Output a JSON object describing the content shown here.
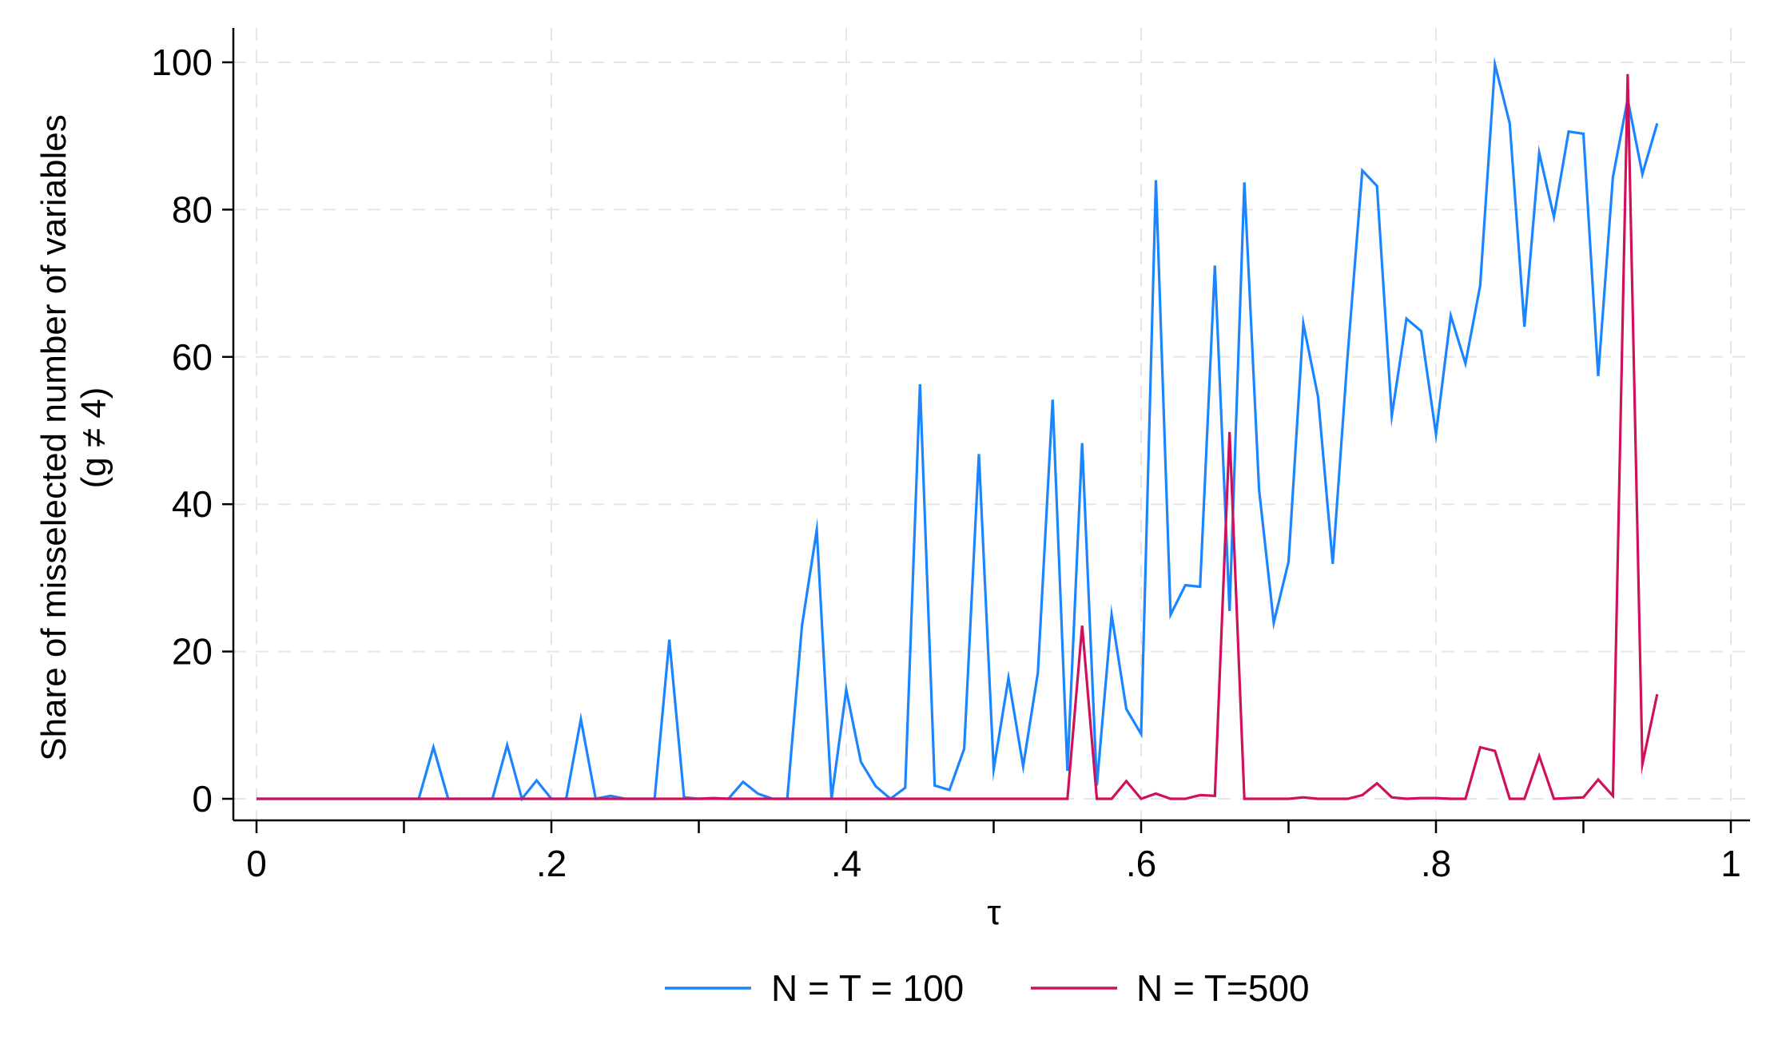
{
  "chart_data": {
    "type": "line",
    "xlabel": "τ",
    "ylabel_lines": [
      "Share of misselected number of variables",
      "(g ≠ 4)"
    ],
    "xlim": [
      0,
      1
    ],
    "ylim": [
      0,
      100
    ],
    "x_ticks": [
      {
        "value": 0,
        "label": "0"
      },
      {
        "value": 0.2,
        "label": ".2"
      },
      {
        "value": 0.4,
        "label": ".4"
      },
      {
        "value": 0.6,
        "label": ".6"
      },
      {
        "value": 0.8,
        "label": ".8"
      },
      {
        "value": 1,
        "label": "1"
      }
    ],
    "x_minor_ticks": [
      0.1,
      0.3,
      0.5,
      0.7,
      0.9
    ],
    "y_ticks": [
      {
        "value": 0,
        "label": "0"
      },
      {
        "value": 20,
        "label": "20"
      },
      {
        "value": 40,
        "label": "40"
      },
      {
        "value": 60,
        "label": "60"
      },
      {
        "value": 80,
        "label": "80"
      },
      {
        "value": 100,
        "label": "100"
      }
    ],
    "grid": true,
    "legend_position": "bottom",
    "x": [
      0,
      0.01,
      0.02,
      0.03,
      0.04,
      0.05,
      0.06,
      0.07,
      0.08,
      0.09,
      0.1,
      0.11,
      0.12,
      0.13,
      0.14,
      0.15,
      0.16,
      0.17,
      0.18,
      0.19,
      0.2,
      0.21,
      0.22,
      0.23,
      0.24,
      0.25,
      0.26,
      0.27,
      0.28,
      0.29,
      0.3,
      0.31,
      0.32,
      0.33,
      0.34,
      0.35,
      0.36,
      0.37,
      0.38,
      0.39,
      0.4,
      0.41,
      0.42,
      0.43,
      0.44,
      0.45,
      0.46,
      0.47,
      0.48,
      0.49,
      0.5,
      0.51,
      0.52,
      0.53,
      0.54,
      0.55,
      0.56,
      0.57,
      0.58,
      0.59,
      0.6,
      0.61,
      0.62,
      0.63,
      0.64,
      0.65,
      0.66,
      0.67,
      0.68,
      0.69,
      0.7,
      0.71,
      0.72,
      0.73,
      0.74,
      0.75,
      0.76,
      0.77,
      0.78,
      0.79,
      0.8,
      0.81,
      0.82,
      0.83,
      0.84,
      0.85,
      0.86,
      0.87,
      0.88,
      0.89,
      0.9,
      0.91,
      0.92,
      0.93,
      0.94,
      0.95
    ],
    "series": [
      {
        "name": "N = T = 100",
        "color": "#1a85ff",
        "values": [
          0,
          0,
          0,
          0,
          0,
          0,
          0,
          0,
          0,
          0,
          0,
          0,
          7,
          0,
          0,
          0,
          0,
          7.3,
          0,
          2.5,
          0,
          0,
          10.8,
          0,
          0.4,
          0,
          0,
          0,
          21.6,
          0.2,
          0,
          0,
          0,
          2.3,
          0.7,
          0,
          0,
          23.5,
          36.5,
          0,
          14.8,
          5,
          1.7,
          0,
          1.5,
          56.3,
          1.8,
          1.2,
          6.8,
          46.8,
          4,
          16.4,
          4.4,
          17.1,
          54.2,
          3.8,
          48.3,
          1.8,
          25,
          12.2,
          8.8,
          84,
          25,
          29,
          28.8,
          72.4,
          25.5,
          83.7,
          42,
          23.9,
          32.2,
          64.5,
          54.6,
          31.9,
          60,
          85.3,
          83.2,
          52,
          65.2,
          63.5,
          49.5,
          65.6,
          59.1,
          69.7,
          99.7,
          91.7,
          64.1,
          87.7,
          79,
          90.6,
          90.3,
          57.4,
          84.4,
          95,
          84.8,
          91.7
        ]
      },
      {
        "name": "N = T=500",
        "color": "#d0105c",
        "values": [
          0,
          0,
          0,
          0,
          0,
          0,
          0,
          0,
          0,
          0,
          0,
          0,
          0,
          0,
          0,
          0,
          0,
          0,
          0,
          0,
          0,
          0,
          0,
          0,
          0,
          0,
          0,
          0,
          0,
          0,
          0,
          0.1,
          0,
          0,
          0,
          0,
          0,
          0,
          0,
          0,
          0,
          0,
          0,
          0,
          0,
          0,
          0,
          0,
          0,
          0,
          0,
          0,
          0,
          0,
          0,
          0,
          23.5,
          0,
          0,
          2.4,
          0,
          0.7,
          0,
          0,
          0.5,
          0.4,
          49.8,
          0,
          0,
          0,
          0,
          0.2,
          0,
          0,
          0,
          0.5,
          2.1,
          0.2,
          0,
          0.1,
          0.1,
          0,
          0,
          7,
          6.5,
          0,
          0,
          5.8,
          0,
          0.1,
          0.2,
          2.6,
          0.4,
          98.4,
          4.7,
          14.2
        ]
      }
    ]
  }
}
